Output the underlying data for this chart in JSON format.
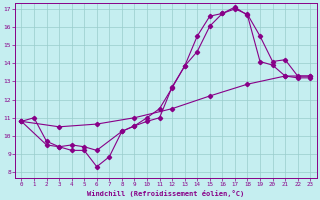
{
  "xlabel": "Windchill (Refroidissement éolien,°C)",
  "xlim": [
    -0.5,
    23.5
  ],
  "ylim": [
    7.7,
    17.3
  ],
  "xticks": [
    0,
    1,
    2,
    3,
    4,
    5,
    6,
    7,
    8,
    9,
    10,
    11,
    12,
    13,
    14,
    15,
    16,
    17,
    18,
    19,
    20,
    21,
    22,
    23
  ],
  "yticks": [
    8,
    9,
    10,
    11,
    12,
    13,
    14,
    15,
    16,
    17
  ],
  "bg_color": "#c5eef0",
  "line_color": "#880088",
  "grid_color": "#99cccc",
  "line1_x": [
    0,
    1,
    2,
    3,
    4,
    5,
    6,
    7,
    8,
    9,
    10,
    11,
    12,
    13,
    14,
    15,
    16,
    17,
    18,
    19,
    20,
    21,
    22,
    23
  ],
  "line1_y": [
    10.8,
    11.0,
    9.7,
    9.4,
    9.2,
    9.2,
    8.3,
    8.85,
    10.25,
    10.55,
    11.0,
    11.5,
    12.65,
    13.85,
    14.65,
    16.05,
    16.75,
    17.1,
    16.65,
    14.1,
    13.9,
    13.3,
    13.2,
    13.2
  ],
  "line2_x": [
    0,
    2,
    3,
    4,
    5,
    6,
    8,
    9,
    10,
    11,
    12,
    13,
    14,
    15,
    16,
    17,
    18,
    19,
    20,
    21,
    22,
    23
  ],
  "line2_y": [
    10.8,
    9.5,
    9.4,
    9.5,
    9.4,
    9.2,
    10.25,
    10.55,
    10.8,
    11.0,
    12.7,
    13.85,
    15.5,
    16.6,
    16.75,
    17.0,
    16.7,
    15.5,
    14.1,
    14.2,
    13.3,
    13.3
  ],
  "line3_x": [
    0,
    3,
    6,
    9,
    12,
    15,
    18,
    21,
    23
  ],
  "line3_y": [
    10.8,
    10.5,
    10.65,
    11.0,
    11.5,
    12.2,
    12.85,
    13.3,
    13.3
  ]
}
